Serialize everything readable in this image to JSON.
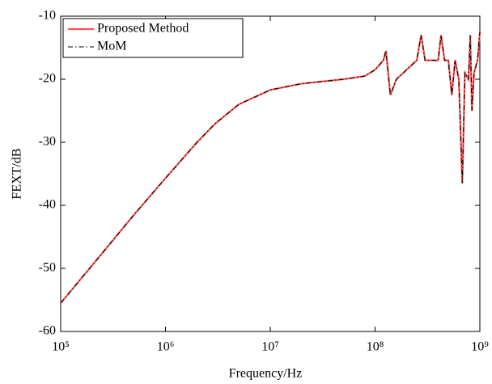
{
  "chart_data": {
    "type": "line",
    "xlabel": "Frequency/Hz",
    "ylabel": "FEXT/dB",
    "xscale": "log",
    "x": [
      100000,
      200000,
      500000,
      1000000,
      2000000,
      3000000,
      5000000,
      10000000,
      20000000,
      50000000,
      80000000,
      100000000,
      120000000,
      127000000,
      140000000,
      160000000,
      200000000,
      250000000,
      275000000,
      300000000,
      400000000,
      426000000,
      460000000,
      500000000,
      540000000,
      580000000,
      630000000,
      680000000,
      720000000,
      780000000,
      810000000,
      840000000,
      880000000,
      950000000,
      1000000000
    ],
    "series": [
      {
        "name": "Proposed Method",
        "color": "#ff5555",
        "linestyle": "solid",
        "values": [
          -55.5,
          -49.5,
          -41.5,
          -35.7,
          -30,
          -27,
          -24,
          -21.7,
          -20.7,
          -20,
          -19.5,
          -18.5,
          -17,
          -15.5,
          -22.5,
          -20,
          -18.5,
          -17,
          -13,
          -17,
          -17,
          -13,
          -17,
          -17,
          -22.5,
          -17,
          -20,
          -36.5,
          -19,
          -20,
          -13,
          -25,
          -19,
          -17,
          -12.5
        ]
      },
      {
        "name": "MoM",
        "color": "#000000",
        "linestyle": "dashdot",
        "values": [
          -55.5,
          -49.5,
          -41.5,
          -35.7,
          -30,
          -27,
          -24,
          -21.7,
          -20.7,
          -20,
          -19.5,
          -18.5,
          -17,
          -15.5,
          -22.5,
          -20,
          -18.5,
          -17,
          -13,
          -17,
          -17,
          -13,
          -17,
          -17,
          -22.5,
          -17,
          -20,
          -36.5,
          -19,
          -20,
          -13,
          -25,
          -19,
          -17,
          -12.5
        ]
      }
    ],
    "xlim": [
      100000,
      1000000000
    ],
    "xticks": [
      {
        "value": 100000,
        "label": "10⁵"
      },
      {
        "value": 1000000,
        "label": "10⁶"
      },
      {
        "value": 10000000,
        "label": "10⁷"
      },
      {
        "value": 100000000,
        "label": "10⁸"
      },
      {
        "value": 1000000000,
        "label": "10⁹"
      }
    ],
    "ylim": [
      -60,
      -10
    ],
    "yticks": [
      -60,
      -50,
      -40,
      -30,
      -20,
      -10
    ],
    "legend": "upper-left"
  }
}
